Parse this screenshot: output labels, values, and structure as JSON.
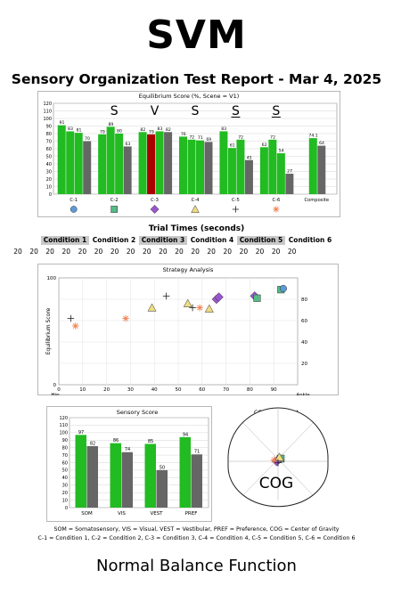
{
  "big_title": "SVM",
  "report_title": "Sensory Organization Test Report - Mar 4, 2025",
  "footer": "Normal Balance Function",
  "legend_line1": "SOM = Somatosensory, VIS = Visual, VEST = Vestibular, PREF = Preference, COG = Center of Gravity",
  "legend_line2": "C-1 = Condition 1, C-2 = Condition 2, C-3 = Condition 3, C-4 = Condition 4, C-5 = Condition 5, C-6 = Condition 6",
  "colors": {
    "green": "#22bb22",
    "dark_gray": "#666666",
    "red": "#aa0000",
    "blue": "#5b9bd5",
    "teal_green": "#55bb88",
    "purple": "#9955cc",
    "yellow": "#f0dc82",
    "orange": "#f08050"
  },
  "trial_times": {
    "title": "Trial Times (seconds)",
    "conditions": [
      "Condition 1",
      "Condition 2",
      "Condition 3",
      "Condition 4",
      "Condition 5",
      "Condition 6"
    ],
    "values": [
      "20",
      "20",
      "20",
      "20",
      "20",
      "20",
      "20",
      "20",
      "20",
      "20",
      "20",
      "20",
      "20",
      "20",
      "20",
      "20",
      "20",
      "20"
    ]
  },
  "chart_data": [
    {
      "id": "equilibrium",
      "type": "bar",
      "title": "Equilibrium Score (%, Scene = V1)",
      "ylim": [
        0,
        120
      ],
      "yticks": [
        "0",
        "10",
        "20",
        "30",
        "40",
        "50",
        "60",
        "70",
        "80",
        "90",
        "100",
        "110",
        "120"
      ],
      "categories": [
        "C-1",
        "C-2",
        "C-3",
        "C-4",
        "C-5",
        "C-6",
        "Composite"
      ],
      "groups": [
        {
          "trials": [
            91,
            83,
            81
          ],
          "trial_colors": [
            "green",
            "green",
            "green"
          ],
          "average": 70
        },
        {
          "trials": [
            79,
            89,
            80
          ],
          "trial_colors": [
            "green",
            "green",
            "green"
          ],
          "average": 63
        },
        {
          "trials": [
            82,
            79,
            83
          ],
          "trial_colors": [
            "green",
            "red",
            "green"
          ],
          "average": 82
        },
        {
          "trials": [
            76,
            72,
            71
          ],
          "trial_colors": [
            "green",
            "green",
            "green"
          ],
          "average": 69
        },
        {
          "trials": [
            83,
            61,
            72
          ],
          "trial_colors": [
            "green",
            "green",
            "green"
          ],
          "average": 45
        },
        {
          "trials": [
            62,
            72,
            54
          ],
          "trial_colors": [
            "green",
            "green",
            "green"
          ],
          "average": 27
        },
        {
          "trials": [
            74
          ],
          "trial_colors": [
            "green"
          ],
          "average": 64
        }
      ],
      "value_labels": [
        [
          "91",
          "83",
          "81",
          "70"
        ],
        [
          "79",
          "89",
          "80",
          "63"
        ],
        [
          "82",
          "79",
          "83",
          "82"
        ],
        [
          "76",
          "72",
          "71",
          "69"
        ],
        [
          "83",
          "61",
          "72",
          "45"
        ],
        [
          "62",
          "72",
          "54",
          "27"
        ],
        [
          "74.1",
          "64"
        ]
      ],
      "condition_symbols": [
        "circle",
        "square",
        "diamond",
        "triangle",
        "plus",
        "star"
      ],
      "annotations": [
        {
          "label": "S",
          "group": 1
        },
        {
          "label": "V",
          "group": 2
        },
        {
          "label": "S",
          "group": 3
        },
        {
          "label": "S",
          "group": 4,
          "underline": true
        },
        {
          "label": "S",
          "group": 5,
          "underline": true
        }
      ]
    },
    {
      "id": "strategy",
      "type": "scatter",
      "title": "Strategy Analysis",
      "ylabel": "Equilibrium Score",
      "xlim": [
        0,
        100
      ],
      "ylim": [
        0,
        100
      ],
      "xticks": [
        "0",
        "10",
        "20",
        "30",
        "40",
        "50",
        "60",
        "70",
        "80",
        "90"
      ],
      "xtick_start": "Hip",
      "xtick_end": "Ankle",
      "yticks_left": [
        "0",
        "100"
      ],
      "yticks_right": [
        "20",
        "40",
        "60",
        "80"
      ],
      "points": [
        {
          "symbol": "plus",
          "x": 5,
          "y": 62
        },
        {
          "symbol": "star",
          "x": 7,
          "y": 55
        },
        {
          "symbol": "star",
          "x": 28,
          "y": 62
        },
        {
          "symbol": "triangle",
          "x": 39,
          "y": 72
        },
        {
          "symbol": "plus",
          "x": 45,
          "y": 83
        },
        {
          "symbol": "triangle",
          "x": 54,
          "y": 76
        },
        {
          "symbol": "plus",
          "x": 56,
          "y": 72
        },
        {
          "symbol": "star",
          "x": 59,
          "y": 72
        },
        {
          "symbol": "triangle",
          "x": 63,
          "y": 71
        },
        {
          "symbol": "diamond",
          "x": 66,
          "y": 80
        },
        {
          "symbol": "diamond",
          "x": 67,
          "y": 82
        },
        {
          "symbol": "diamond",
          "x": 82,
          "y": 83
        },
        {
          "symbol": "square",
          "x": 83,
          "y": 81
        },
        {
          "symbol": "square",
          "x": 93,
          "y": 89
        },
        {
          "symbol": "circle",
          "x": 94,
          "y": 90
        }
      ]
    },
    {
      "id": "sensory",
      "type": "bar",
      "title": "Sensory Score",
      "ylim": [
        0,
        120
      ],
      "yticks": [
        "0",
        "10",
        "20",
        "30",
        "40",
        "50",
        "60",
        "70",
        "80",
        "90",
        "100",
        "110",
        "120"
      ],
      "categories": [
        "SOM",
        "VIS",
        "VEST",
        "PREF"
      ],
      "series": [
        {
          "values": [
            97,
            86,
            85,
            94
          ],
          "value_labels": [
            "97",
            "86",
            "85",
            "94"
          ],
          "color": "green"
        },
        {
          "values": [
            82,
            74,
            50,
            71
          ],
          "value_labels": [
            "82",
            "74",
            "50",
            "71"
          ],
          "color": "dark_gray"
        }
      ]
    },
    {
      "id": "cog",
      "type": "scatter",
      "title": "COG Alignment",
      "label": "COG",
      "points": [
        {
          "symbol": "circle",
          "x": 0.0,
          "y": 0.05
        },
        {
          "symbol": "square",
          "x": 0.1,
          "y": 0.1
        },
        {
          "symbol": "diamond",
          "x": -0.05,
          "y": 0.0
        },
        {
          "symbol": "triangle",
          "x": 0.05,
          "y": 0.15
        },
        {
          "symbol": "star",
          "x": -0.15,
          "y": 0.05
        },
        {
          "symbol": "plus",
          "x": 0.0,
          "y": -0.05
        }
      ]
    }
  ]
}
